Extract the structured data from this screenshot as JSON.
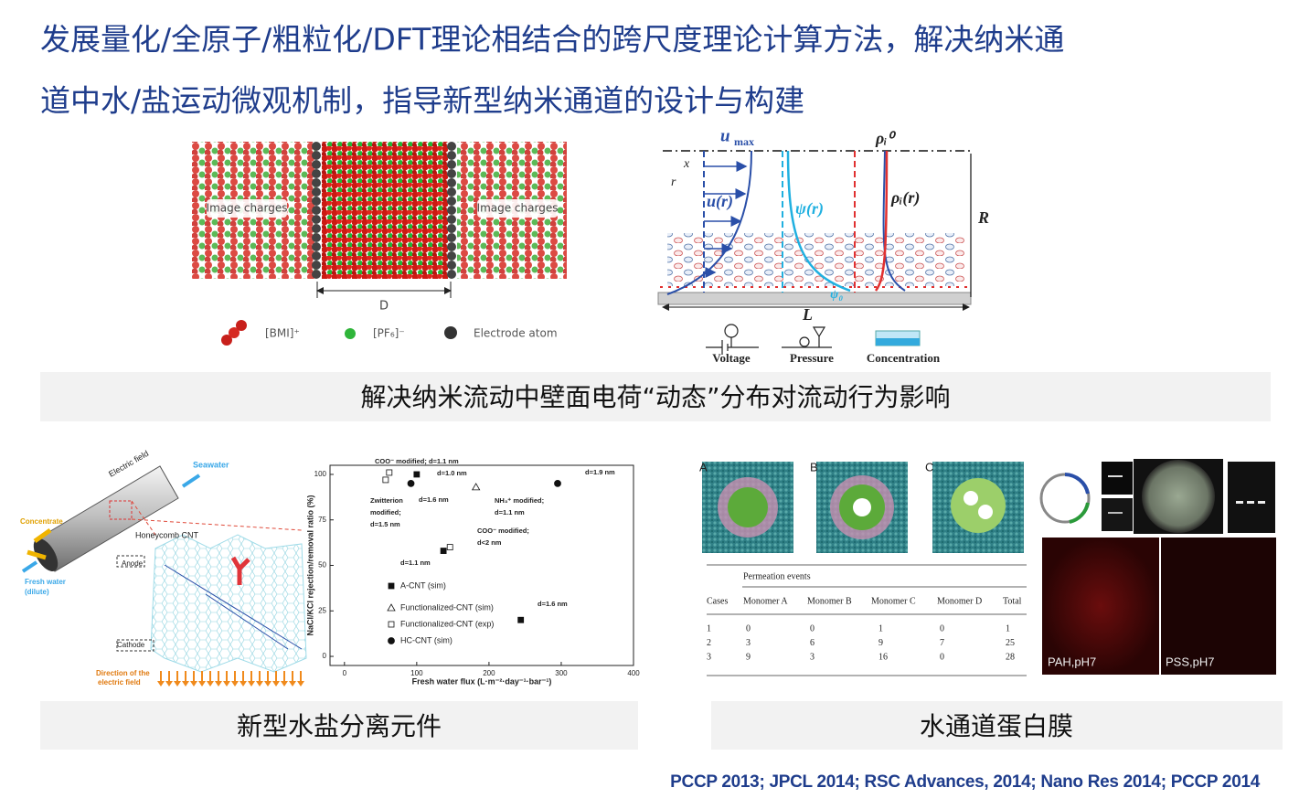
{
  "title_lines": [
    "发展量化/全原子/粗粒化/DFT理论相结合的跨尺度理论计算方法，解决纳米通",
    "道中水/盐运动微观机制，指导新型纳米通道的设计与构建"
  ],
  "figure_md": {
    "image_charges_left": "Image charges",
    "image_charges_right": "Image charges",
    "gap": "D",
    "legend": [
      "[BMI]⁺",
      "[PF₆]⁻",
      "Electrode atom"
    ]
  },
  "figure_flow": {
    "u_max": "u",
    "u_max_sub": "max",
    "x": "x",
    "r": "r",
    "u_r": "u(r)",
    "psi_r": "ψ(r)",
    "rho0": "ρᵢ⁰",
    "rho_r": "ρᵢ(r)",
    "R": "R",
    "psi0": "ψ₀",
    "L": "L",
    "drivers": [
      "Voltage",
      "Pressure",
      "Concentration"
    ]
  },
  "caption_1": "解决纳米流动中壁面电荷“动态”分布对流动行为影响",
  "figure_cnt": {
    "electric_field": "Electric field",
    "seawater": "Seawater",
    "concentrate": "Concentrate",
    "fresh_water": "Fresh water",
    "dilute": "(dilute)",
    "honeycomb": "Honeycomb CNT",
    "anode": "Anode",
    "cathode": "Cathode",
    "direction": "Direction of the",
    "direction2": "electric field"
  },
  "plot": {
    "type": "scatter",
    "x_label": "Fresh water flux (L·m⁻²·day⁻¹·bar⁻¹)",
    "y_label": "NaCl/KCl rejection/removal ratio (%)",
    "xlim": [
      -20,
      400
    ],
    "xticks": [
      0,
      100,
      200,
      300,
      400
    ],
    "ylim": [
      -5,
      105
    ],
    "yticks": [
      0,
      25,
      50,
      75,
      100
    ],
    "series": [
      {
        "name": "A-CNT (sim)",
        "marker": "square",
        "x": [
          100,
          137,
          244
        ],
        "y": [
          100,
          58,
          20
        ]
      },
      {
        "name": "Functionalized-CNT (sim)",
        "marker": "triangle",
        "x": [
          182
        ],
        "y": [
          93
        ]
      },
      {
        "name": "Functionalized-CNT (exp)",
        "marker": "open-square",
        "x": [
          57,
          62,
          146
        ],
        "y": [
          97,
          101,
          60
        ]
      },
      {
        "name": "HC-CNT (sim)",
        "marker": "circle",
        "x": [
          92,
          295
        ],
        "y": [
          95,
          95
        ]
      }
    ],
    "annotations": [
      "COO⁻ modified; d=1.1 nm",
      "d=1.0 nm",
      "Zwitterion",
      "modified;",
      "d=1.5 nm",
      "d=1.6 nm",
      "NH₃⁺ modified;",
      "d=1.1 nm",
      "d=1.9 nm",
      "COO⁻ modified;",
      "d<2 nm",
      "d=1.1 nm",
      "d=1.6 nm"
    ]
  },
  "figure_aqp": {
    "panels": [
      "A",
      "B",
      "C"
    ],
    "table": {
      "caption": "Permeation events",
      "header": [
        "Cases",
        "Monomer A",
        "Monomer B",
        "Monomer C",
        "Monomer D",
        "Total"
      ],
      "rows": [
        [
          1,
          0,
          0,
          1,
          0,
          1
        ],
        [
          2,
          3,
          6,
          9,
          7,
          25
        ],
        [
          3,
          9,
          3,
          16,
          0,
          28
        ]
      ]
    },
    "fluorescence": [
      "PAH,pH7",
      "PSS,pH7"
    ]
  },
  "caption_2": "新型水盐分离元件",
  "caption_3": "水通道蛋白膜",
  "references": "PCCP 2013; JPCL 2014; RSC Advances, 2014; Nano Res 2014; PCCP 2014"
}
